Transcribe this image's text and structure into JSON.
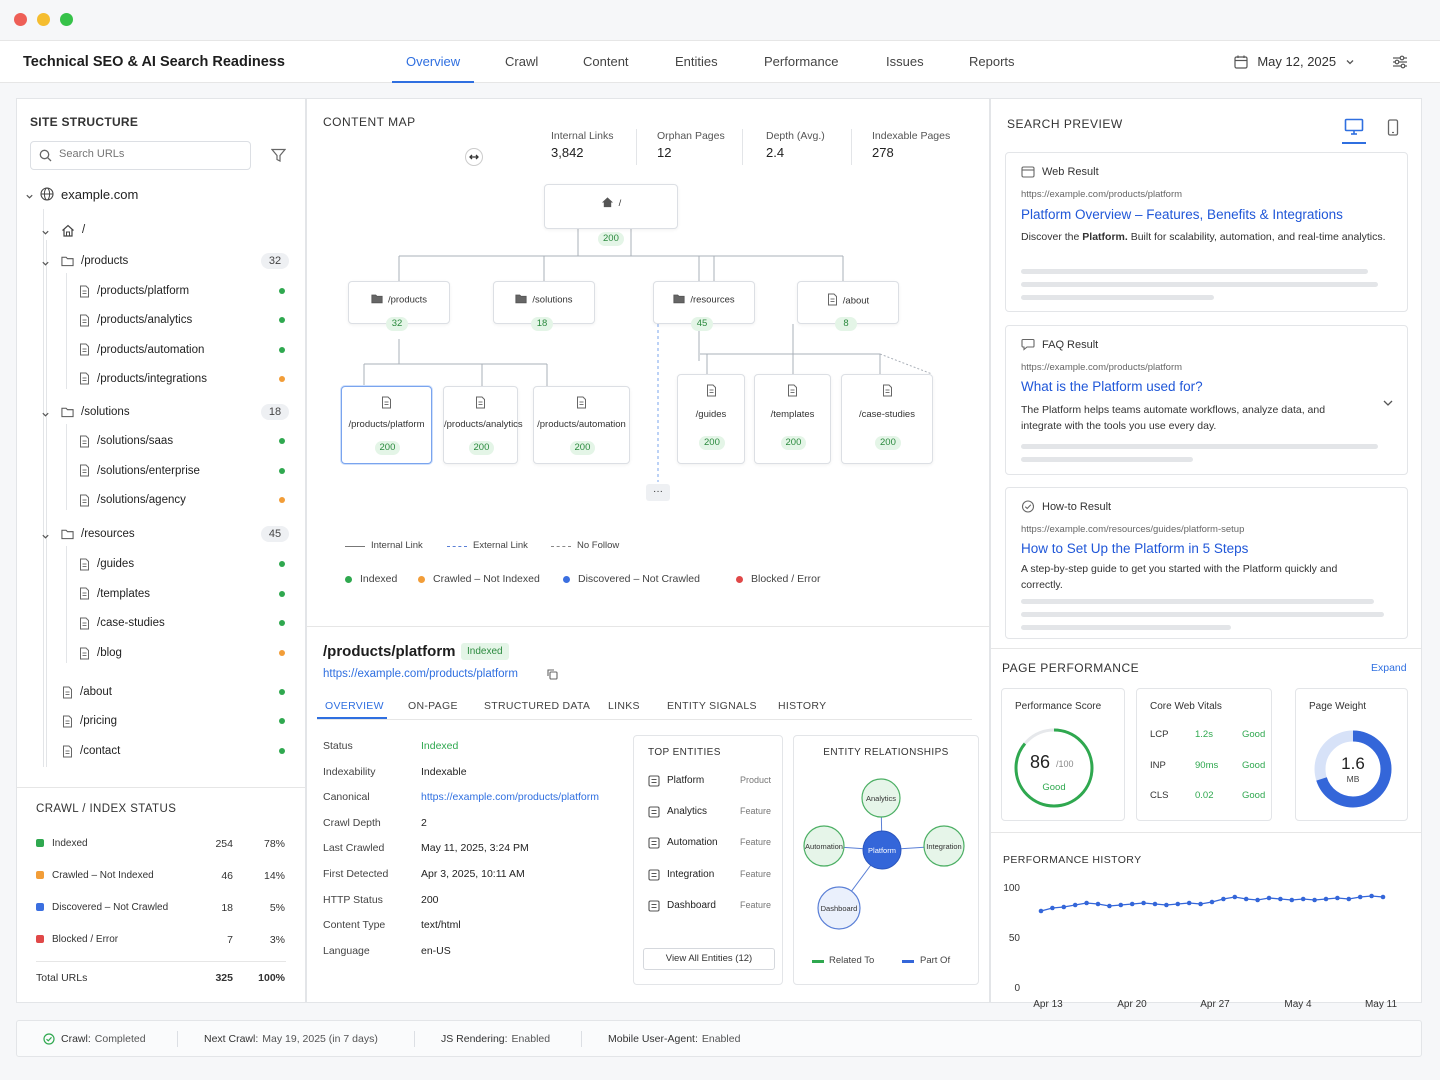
{
  "app": {
    "title": "Technical SEO & AI Search Readiness",
    "date": "May 12, 2025"
  },
  "nav": [
    "Overview",
    "Crawl",
    "Content",
    "Entities",
    "Performance",
    "Issues",
    "Reports"
  ],
  "site_structure": {
    "title": "SITE STRUCTURE",
    "search_placeholder": "Search URLs",
    "domain": "example.com",
    "root": "/",
    "groups": [
      {
        "label": "/products",
        "count": "32",
        "items": [
          {
            "label": "/products/platform",
            "status": "green"
          },
          {
            "label": "/products/analytics",
            "status": "green"
          },
          {
            "label": "/products/automation",
            "status": "green"
          },
          {
            "label": "/products/integrations",
            "status": "orange"
          }
        ]
      },
      {
        "label": "/solutions",
        "count": "18",
        "items": [
          {
            "label": "/solutions/saas",
            "status": "green"
          },
          {
            "label": "/solutions/enterprise",
            "status": "green"
          },
          {
            "label": "/solutions/agency",
            "status": "orange"
          }
        ]
      },
      {
        "label": "/resources",
        "count": "45",
        "items": [
          {
            "label": "/guides",
            "status": "green"
          },
          {
            "label": "/templates",
            "status": "green"
          },
          {
            "label": "/case-studies",
            "status": "green"
          },
          {
            "label": "/blog",
            "status": "orange"
          }
        ]
      }
    ],
    "pages": [
      {
        "label": "/about",
        "status": "green"
      },
      {
        "label": "/pricing",
        "status": "green"
      },
      {
        "label": "/contact",
        "status": "green"
      }
    ]
  },
  "crawl_status": {
    "title": "CRAWL / INDEX STATUS",
    "rows": [
      {
        "label": "Indexed",
        "count": "254",
        "pct": "78%",
        "color": "#2fa84f"
      },
      {
        "label": "Crawled – Not Indexed",
        "count": "46",
        "pct": "14%",
        "color": "#f29d38"
      },
      {
        "label": "Discovered – Not Crawled",
        "count": "18",
        "pct": "5%",
        "color": "#3b6fe0"
      },
      {
        "label": "Blocked / Error",
        "count": "7",
        "pct": "3%",
        "color": "#e04848"
      }
    ],
    "total_label": "Total URLs",
    "total": "325",
    "total_pct": "100%"
  },
  "content_map": {
    "title": "CONTENT MAP",
    "stats": [
      {
        "label": "Internal Links",
        "value": "3,842"
      },
      {
        "label": "Orphan Pages",
        "value": "12"
      },
      {
        "label": "Depth (Avg.)",
        "value": "2.4"
      },
      {
        "label": "Indexable Pages",
        "value": "278"
      }
    ],
    "root": {
      "label": "/",
      "code": "200"
    },
    "level1": [
      {
        "label": "/products",
        "count": "32"
      },
      {
        "label": "/solutions",
        "count": "18"
      },
      {
        "label": "/resources",
        "count": "45"
      },
      {
        "label": "/about",
        "count": "8"
      }
    ],
    "level2a": [
      {
        "label": "/products/platform",
        "code": "200"
      },
      {
        "label": "/products/analytics",
        "code": "200"
      },
      {
        "label": "/products/automation",
        "code": "200"
      }
    ],
    "level2b": [
      {
        "label": "/guides",
        "code": "200"
      },
      {
        "label": "/templates",
        "code": "200"
      },
      {
        "label": "/case-studies",
        "code": "200"
      }
    ],
    "more": "···",
    "link_legend": [
      "Internal Link",
      "External Link",
      "No Follow"
    ],
    "status_legend": [
      {
        "label": "Indexed",
        "color": "#2fa84f"
      },
      {
        "label": "Crawled – Not Indexed",
        "color": "#f29d38"
      },
      {
        "label": "Discovered – Not Crawled",
        "color": "#3b6fe0"
      },
      {
        "label": "Blocked / Error",
        "color": "#e04848"
      }
    ]
  },
  "page_detail": {
    "path": "/products/platform",
    "badge": "Indexed",
    "url": "https://example.com/products/platform",
    "tabs": [
      "OVERVIEW",
      "ON-PAGE",
      "STRUCTURED DATA",
      "LINKS",
      "ENTITY SIGNALS",
      "HISTORY"
    ],
    "fields": [
      {
        "label": "Status",
        "value": "Indexed"
      },
      {
        "label": "Indexability",
        "value": "Indexable"
      },
      {
        "label": "Canonical",
        "value": "https://example.com/products/platform"
      },
      {
        "label": "Crawl Depth",
        "value": "2"
      },
      {
        "label": "Last Crawled",
        "value": "May 11, 2025, 3:24 PM"
      },
      {
        "label": "First Detected",
        "value": "Apr 3, 2025, 10:11 AM"
      },
      {
        "label": "HTTP Status",
        "value": "200"
      },
      {
        "label": "Content Type",
        "value": "text/html"
      },
      {
        "label": "Language",
        "value": "en-US"
      }
    ],
    "top_entities": {
      "title": "TOP ENTITIES",
      "items": [
        {
          "name": "Platform",
          "type": "Product"
        },
        {
          "name": "Analytics",
          "type": "Feature"
        },
        {
          "name": "Automation",
          "type": "Feature"
        },
        {
          "name": "Integration",
          "type": "Feature"
        },
        {
          "name": "Dashboard",
          "type": "Feature"
        }
      ],
      "button": "View All Entities (12)"
    },
    "relationships": {
      "title": "ENTITY RELATIONSHIPS",
      "center": "Platform",
      "nodes": [
        "Analytics",
        "Automation",
        "Integration",
        "Dashboard"
      ],
      "legend": [
        "Related To",
        "Part Of"
      ]
    }
  },
  "search_preview": {
    "title": "SEARCH PREVIEW",
    "results": [
      {
        "type": "Web Result",
        "url": "https://example.com/products/platform",
        "title": "Platform Overview – Features, Benefits & Integrations",
        "desc_pre": "Discover the ",
        "desc_bold": "Platform.",
        "desc_post": " Built for scalability, automation, and real-time analytics."
      },
      {
        "type": "FAQ Result",
        "url": "https://example.com/products/platform",
        "title": "What is the Platform used for?",
        "desc": "The Platform helps teams automate workflows, analyze data, and integrate with the tools you use every day."
      },
      {
        "type": "How-to Result",
        "url": "https://example.com/resources/guides/platform-setup",
        "title": "How to Set Up the Platform in 5 Steps",
        "desc": "A step-by-step guide to get you started with the Platform quickly and correctly."
      }
    ]
  },
  "performance": {
    "title": "PAGE PERFORMANCE",
    "expand": "Expand",
    "score": {
      "label": "Performance Score",
      "value": "86",
      "max": "/100",
      "rating": "Good",
      "fraction": 0.86
    },
    "cwv": {
      "label": "Core Web Vitals",
      "rows": [
        {
          "metric": "LCP",
          "value": "1.2s",
          "rating": "Good"
        },
        {
          "metric": "INP",
          "value": "90ms",
          "rating": "Good"
        },
        {
          "metric": "CLS",
          "value": "0.02",
          "rating": "Good"
        }
      ]
    },
    "weight": {
      "label": "Page Weight",
      "value": "1.6",
      "unit": "MB",
      "fraction": 0.7
    }
  },
  "history": {
    "title": "PERFORMANCE HISTORY",
    "chart_data": {
      "type": "line",
      "yticks": [
        "100",
        "50",
        "0"
      ],
      "ylim": [
        0,
        100
      ],
      "xticks": [
        "Apr 13",
        "Apr 20",
        "Apr 27",
        "May 4",
        "May 11"
      ],
      "values": [
        76,
        79,
        80,
        82,
        84,
        83,
        81,
        82,
        83,
        84,
        83,
        82,
        83,
        84,
        83,
        85,
        88,
        90,
        88,
        87,
        89,
        88,
        87,
        88,
        87,
        88,
        89,
        88,
        90,
        91,
        90
      ]
    }
  },
  "footer": {
    "items": [
      {
        "label": "Crawl:",
        "value": "Completed"
      },
      {
        "label": "Next Crawl:",
        "value": "May 19, 2025 (in 7 days)"
      },
      {
        "label": "JS Rendering:",
        "value": "Enabled"
      },
      {
        "label": "Mobile User-Agent:",
        "value": "Enabled"
      }
    ]
  }
}
